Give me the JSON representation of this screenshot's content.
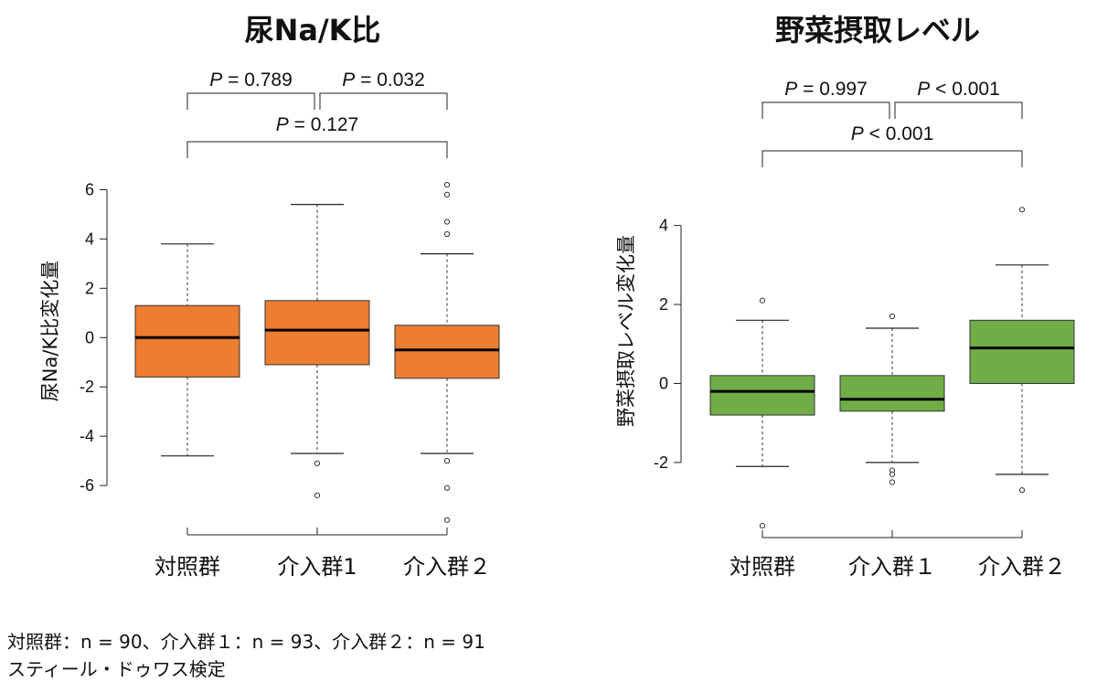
{
  "chart_data": [
    {
      "type": "box",
      "title": "尿Na/K比",
      "ylabel": "尿Na/K比変化量",
      "ylim": [
        -8,
        6.5
      ],
      "yticks": [
        -6,
        -4,
        -2,
        0,
        2,
        4,
        6
      ],
      "categories": [
        "対照群",
        "介入群1",
        "介入群２"
      ],
      "color": "#ed7d31",
      "boxes": [
        {
          "category": "対照群",
          "whisker_low": -4.8,
          "q1": -1.6,
          "median": 0.0,
          "q3": 1.3,
          "whisker_high": 3.8,
          "outliers": []
        },
        {
          "category": "介入群1",
          "whisker_low": -4.7,
          "q1": -1.1,
          "median": 0.3,
          "q3": 1.5,
          "whisker_high": 5.4,
          "outliers": [
            -5.1,
            -6.4
          ]
        },
        {
          "category": "介入群２",
          "whisker_low": -4.7,
          "q1": -1.65,
          "median": -0.5,
          "q3": 0.5,
          "whisker_high": 3.4,
          "outliers": [
            -5.0,
            -6.1,
            -7.4,
            4.2,
            4.7,
            5.8,
            6.2
          ]
        }
      ],
      "comparisons": [
        {
          "groups": [
            0,
            2
          ],
          "label": "P = 0.127",
          "level": 1
        },
        {
          "groups": [
            0,
            1
          ],
          "label": "P = 0.789",
          "level": 0
        },
        {
          "groups": [
            1,
            2
          ],
          "label": "P = 0.032",
          "level": 0
        }
      ]
    },
    {
      "type": "box",
      "title": "野菜摂取レベル",
      "ylabel": "野菜摂取レベル変化量",
      "ylim": [
        -3.9,
        4.5
      ],
      "yticks": [
        -2,
        0,
        2,
        4
      ],
      "categories": [
        "対照群",
        "介入群１",
        "介入群２"
      ],
      "color": "#70ad47",
      "boxes": [
        {
          "category": "対照群",
          "whisker_low": -2.1,
          "q1": -0.8,
          "median": -0.2,
          "q3": 0.2,
          "whisker_high": 1.6,
          "outliers": [
            2.1,
            -3.6
          ]
        },
        {
          "category": "介入群１",
          "whisker_low": -2.0,
          "q1": -0.7,
          "median": -0.4,
          "q3": 0.2,
          "whisker_high": 1.4,
          "outliers": [
            1.7,
            -2.2,
            -2.3,
            -2.5
          ]
        },
        {
          "category": "介入群２",
          "whisker_low": -2.3,
          "q1": 0.0,
          "median": 0.9,
          "q3": 1.6,
          "whisker_high": 3.0,
          "outliers": [
            4.4,
            -2.7
          ]
        }
      ],
      "comparisons": [
        {
          "groups": [
            0,
            2
          ],
          "label": "P < 0.001",
          "level": 1
        },
        {
          "groups": [
            0,
            1
          ],
          "label": "P = 0.997",
          "level": 0
        },
        {
          "groups": [
            1,
            2
          ],
          "label": "P < 0.001",
          "level": 0
        }
      ]
    }
  ],
  "footnote": {
    "line1": "対照群：n = 90、介入群１：n = 93、介入群２：n = 91",
    "line2": "スティール・ドゥワス検定"
  }
}
